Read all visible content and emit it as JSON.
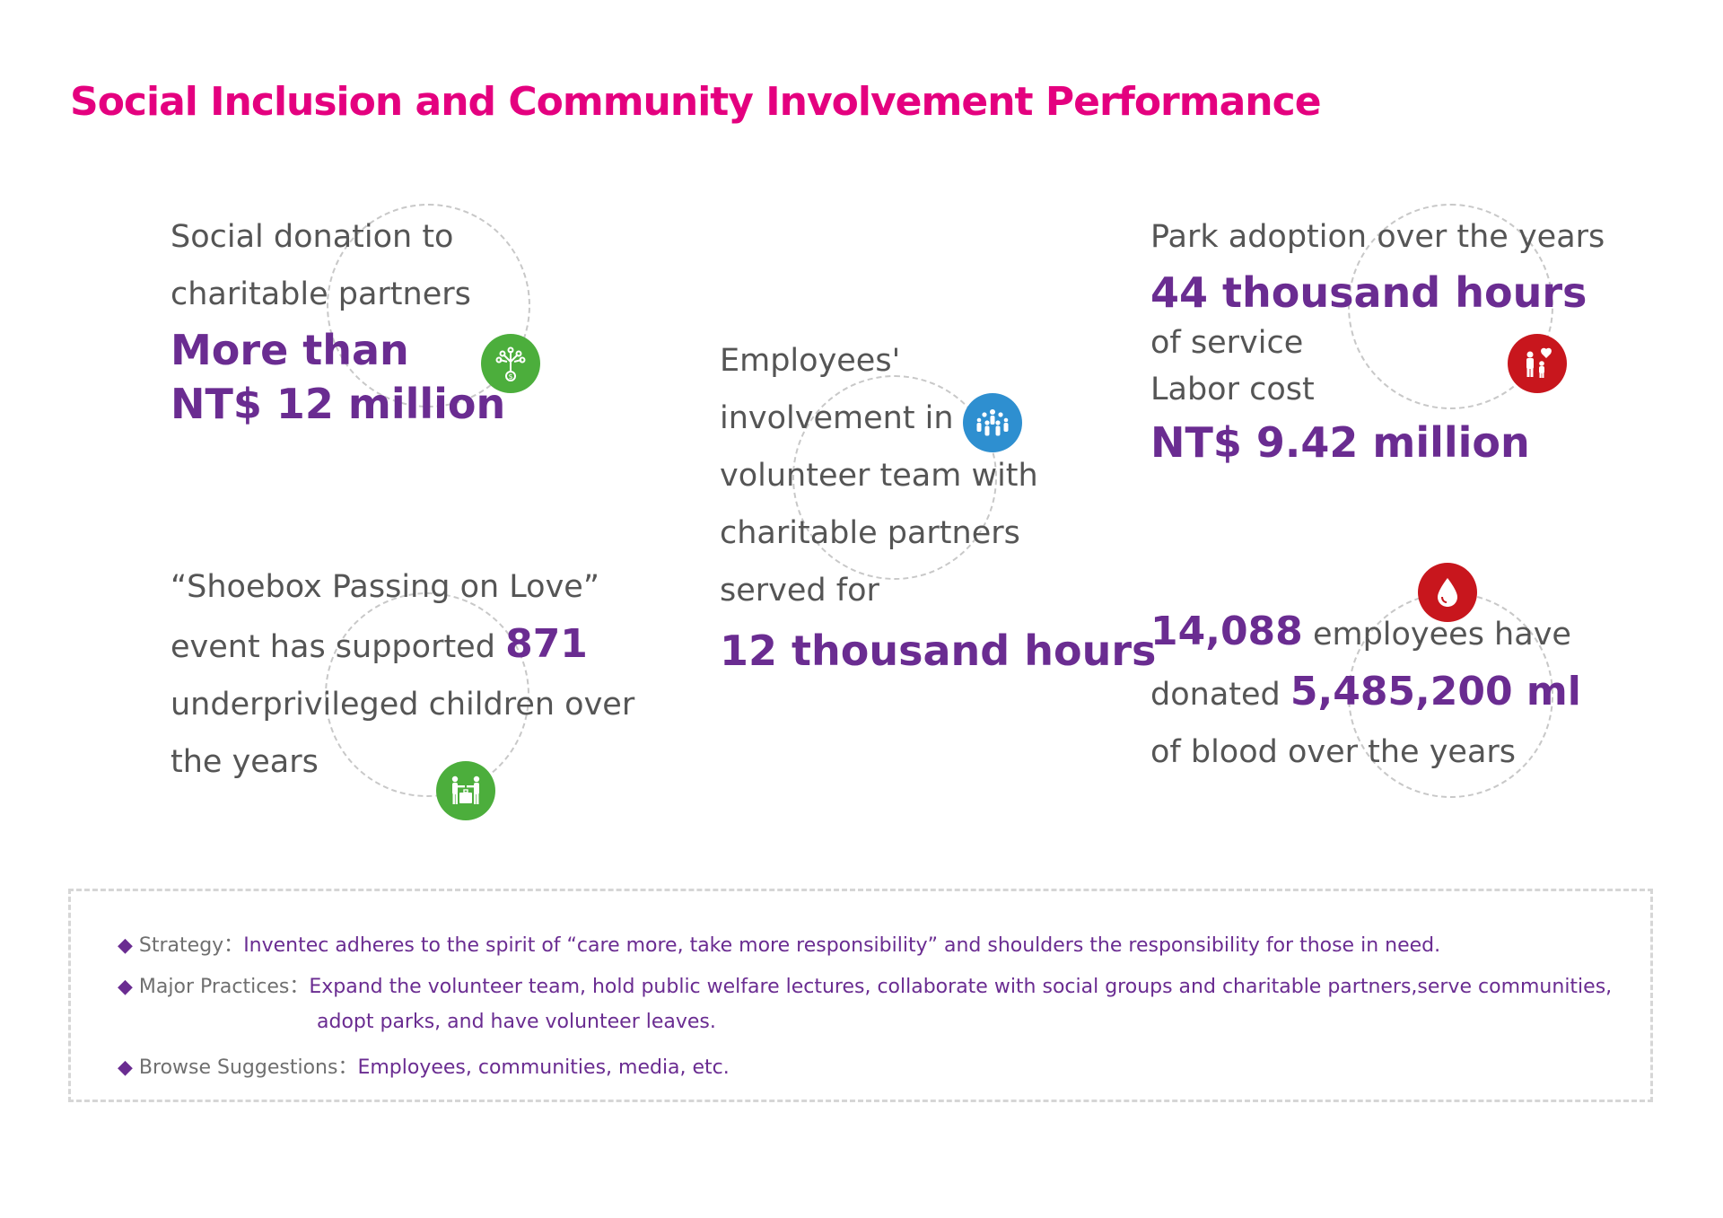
{
  "page_title": "Social Inclusion and Community Involvement Performance",
  "colors": {
    "title": "#e4007f",
    "highlight": "#6a2c91",
    "text": "#555555",
    "green": "#4cae3c",
    "blue": "#2e8fd0",
    "red": "#c8161d"
  },
  "donation": {
    "line1": "Social donation to",
    "line2": "charitable partners",
    "value1": "More than",
    "value2": "NT$ 12 million",
    "icon": "money-tree-icon"
  },
  "volunteer": {
    "line1": "Employees'",
    "line2": "involvement in",
    "line3": "volunteer team with",
    "line4": "charitable partners",
    "line5": "served for",
    "value": "12 thousand hours",
    "icon": "group-people-icon"
  },
  "park": {
    "line1": "Park adoption over the years",
    "value1": "44 thousand hours",
    "line2": "of service",
    "line3": "Labor cost",
    "value2": "NT$ 9.42 million",
    "icon": "family-heart-icon"
  },
  "shoebox": {
    "line1": "“Shoebox Passing on Love”",
    "line2_prefix": "event has supported",
    "count": "871",
    "line3": "underprivileged children over",
    "line4": "the years",
    "icon": "gift-giving-icon"
  },
  "blood": {
    "employees": "14,088",
    "line1_suffix": "employees have",
    "line2_prefix": "donated",
    "volume": "5,485,200 ml",
    "line3": "of blood over the years",
    "icon": "blood-drop-icon"
  },
  "info": {
    "diamond": "◆",
    "strategy_label": "Strategy：",
    "strategy_value": "Inventec adheres to the spirit of “care more, take more responsibility” and shoulders the responsibility for those in need.",
    "practices_label": "Major Practices：",
    "practices_value1": "Expand the volunteer team, hold public welfare lectures, collaborate with social groups and charitable partners,serve communities,",
    "practices_value2": "adopt parks, and have volunteer leaves.",
    "browse_label": "Browse Suggestions：",
    "browse_value": "Employees, communities, media, etc."
  }
}
